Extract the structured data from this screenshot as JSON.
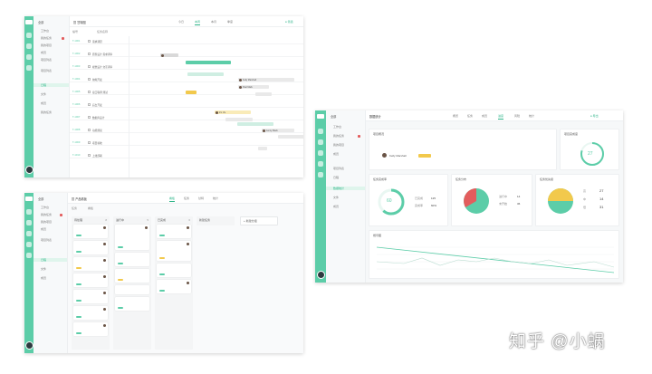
{
  "gantt": {
    "tabs": [
      "今日",
      "本周",
      "本月",
      "季度"
    ],
    "sidebar_items": [
      "全部",
      "工作台",
      "我的任务",
      "我的项目",
      "成员",
      "项目列表",
      "日程",
      "文件"
    ],
    "columns": [
      "编号",
      "任务名称"
    ],
    "rows": [
      {
        "code": "T-1001",
        "name": "需求调研"
      },
      {
        "code": "T-1002",
        "name": "原型设计 需求评审"
      },
      {
        "code": "T-1003",
        "name": "视觉设计 交互评审"
      },
      {
        "code": "T-1004",
        "name": "前端开发"
      },
      {
        "code": "T-1005",
        "name": "接口联调 测试"
      },
      {
        "code": "T-1006",
        "name": "后台开发"
      },
      {
        "code": "T-1007",
        "name": "数据库设计"
      },
      {
        "code": "T-1008",
        "name": "功能测试"
      },
      {
        "code": "T-1009",
        "name": "项目验收"
      },
      {
        "code": "T-1010",
        "name": "上线部署"
      }
    ],
    "bar_labels": [
      "Kelly Marshall",
      "Paul Mark",
      "Iris Vie",
      "Jenny Mack"
    ]
  },
  "board": {
    "tabs": [
      "任务",
      "看板",
      "甘特",
      "统计"
    ],
    "columns": [
      {
        "title": "待处理",
        "count": "8"
      },
      {
        "title": "进行中",
        "count": "5"
      },
      {
        "title": "已完成",
        "count": "6"
      },
      {
        "title": "新建任务",
        "count": ""
      }
    ],
    "add_label": "+ 新建分组"
  },
  "dashboard": {
    "title": "数据统计",
    "tabs": [
      "概览",
      "任务",
      "成员",
      "进度",
      "风险",
      "统计"
    ],
    "overview_label": "项目概况",
    "member_name": "Kelly Marshall",
    "progress_label": "项目完成度",
    "progress_value": "27",
    "panels": [
      "任务完成率",
      "任务分布",
      "任务优先级"
    ],
    "rate_value": "60",
    "rate_stats": [
      {
        "label": "已完成",
        "value": "125"
      },
      {
        "label": "完成率",
        "value": "60%"
      }
    ],
    "pie_stats": [
      {
        "label": "进行中",
        "value": "14"
      },
      {
        "label": "未开始",
        "value": "36"
      }
    ],
    "priority_stats": [
      {
        "label": "高",
        "value": "27"
      },
      {
        "label": "中",
        "value": "14"
      },
      {
        "label": "低",
        "value": "31"
      }
    ],
    "trend_label": "燃尽图"
  },
  "watermark": "知乎 @小蜗",
  "colors": {
    "accent": "#5ccda8",
    "red": "#e35d5d",
    "yellow": "#f2c94c",
    "teal": "#5ccda8"
  }
}
